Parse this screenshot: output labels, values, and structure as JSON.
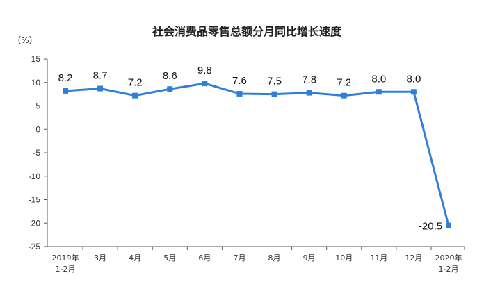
{
  "chart_data": {
    "type": "line",
    "title": "社会消费品零售总额分月同比增长速度",
    "y_unit_label": "（%）",
    "ylim": [
      -25,
      15
    ],
    "yticks": [
      15,
      10,
      5,
      0,
      -5,
      -10,
      -15,
      -20,
      -25
    ],
    "categories": [
      [
        "2019年",
        "1-2月"
      ],
      [
        "3月"
      ],
      [
        "4月"
      ],
      [
        "5月"
      ],
      [
        "6月"
      ],
      [
        "7月"
      ],
      [
        "8月"
      ],
      [
        "9月"
      ],
      [
        "10月"
      ],
      [
        "11月"
      ],
      [
        "12月"
      ],
      [
        "2020年",
        "1-2月"
      ]
    ],
    "series": [
      {
        "values": [
          8.2,
          8.7,
          7.2,
          8.6,
          9.8,
          7.6,
          7.5,
          7.8,
          7.2,
          8.0,
          8.0,
          -20.5
        ],
        "labels": [
          "8.2",
          "8.7",
          "7.2",
          "8.6",
          "9.8",
          "7.6",
          "7.5",
          "7.8",
          "7.2",
          "8.0",
          "8.0",
          "-20.5"
        ],
        "color": "#2f7ed8"
      }
    ],
    "axis_color": "#555555",
    "grid": false,
    "legend": "none"
  }
}
